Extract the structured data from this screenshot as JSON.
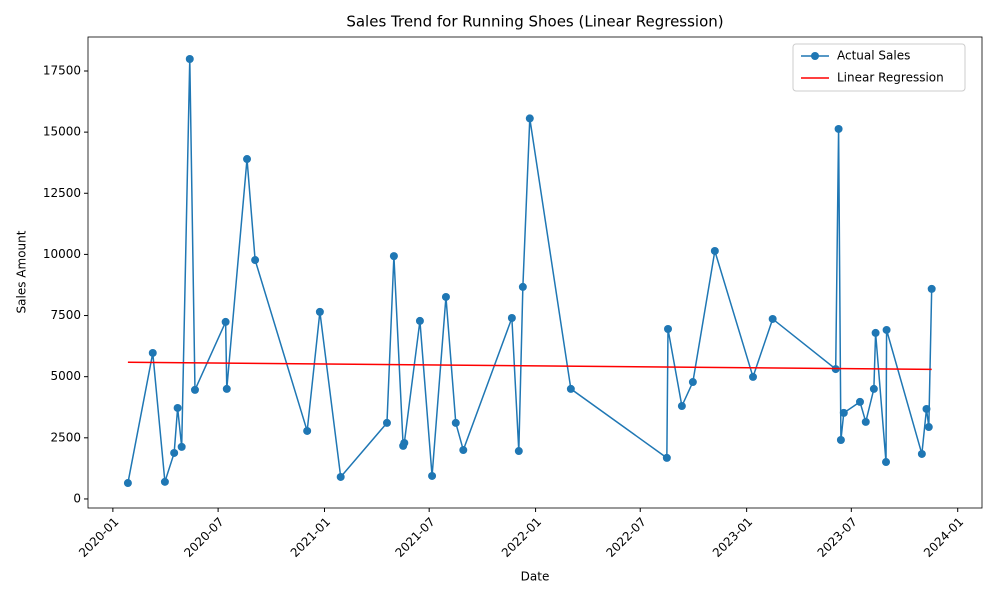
{
  "chart_data": {
    "type": "line",
    "title": "Sales Trend for Running Shoes (Linear Regression)",
    "x_label": "Date",
    "y_label": "Sales Amount",
    "xlim": [
      "2019-11-19",
      "2024-02-12"
    ],
    "ylim": [
      -370,
      18890
    ],
    "xticks": [
      {
        "value": "2020-01-01",
        "label": "2020-01"
      },
      {
        "value": "2020-07-01",
        "label": "2020-07"
      },
      {
        "value": "2021-01-01",
        "label": "2021-01"
      },
      {
        "value": "2021-07-01",
        "label": "2021-07"
      },
      {
        "value": "2022-01-01",
        "label": "2022-01"
      },
      {
        "value": "2022-07-01",
        "label": "2022-07"
      },
      {
        "value": "2023-01-01",
        "label": "2023-01"
      },
      {
        "value": "2023-07-01",
        "label": "2023-07"
      },
      {
        "value": "2024-01-01",
        "label": "2024-01"
      }
    ],
    "yticks": [
      0,
      2500,
      5000,
      7500,
      10000,
      12500,
      15000,
      17500
    ],
    "legend": "upper right",
    "series": [
      {
        "name": "Actual Sales",
        "color": "#1f77b4",
        "marker": true,
        "x": [
          "2020-01-27",
          "2020-03-10",
          "2020-03-31",
          "2020-04-16",
          "2020-04-22",
          "2020-04-29",
          "2020-05-13",
          "2020-05-22",
          "2020-07-14",
          "2020-07-16",
          "2020-08-20",
          "2020-09-03",
          "2020-12-02",
          "2020-12-24",
          "2021-01-29",
          "2021-04-19",
          "2021-05-01",
          "2021-05-17",
          "2021-05-19",
          "2021-06-15",
          "2021-07-06",
          "2021-07-30",
          "2021-08-16",
          "2021-08-29",
          "2021-11-21",
          "2021-12-03",
          "2021-12-10",
          "2021-12-22",
          "2022-03-03",
          "2022-08-16",
          "2022-08-18",
          "2022-09-11",
          "2022-09-30",
          "2022-11-07",
          "2023-01-12",
          "2023-02-15",
          "2023-06-04",
          "2023-06-09",
          "2023-06-13",
          "2023-06-18",
          "2023-07-16",
          "2023-07-26",
          "2023-08-09",
          "2023-08-12",
          "2023-08-30",
          "2023-08-31",
          "2023-10-31",
          "2023-11-08",
          "2023-11-12",
          "2023-11-17"
        ],
        "values": [
          650,
          5970,
          700,
          1880,
          3720,
          2130,
          17990,
          4460,
          7240,
          4500,
          13900,
          9770,
          2780,
          7650,
          900,
          3110,
          9930,
          2170,
          2290,
          7280,
          940,
          8260,
          3110,
          2000,
          7400,
          1960,
          8670,
          15560,
          4500,
          1680,
          6950,
          3800,
          4780,
          10140,
          4990,
          7360,
          5310,
          15130,
          2410,
          3520,
          3970,
          3150,
          4500,
          6790,
          1510,
          6910,
          1840,
          3680,
          2940,
          8590
        ]
      },
      {
        "name": "Linear Regression",
        "color": "red",
        "marker": false,
        "x": [
          "2020-01-27",
          "2023-11-17"
        ],
        "values": [
          5590,
          5300
        ]
      }
    ]
  }
}
